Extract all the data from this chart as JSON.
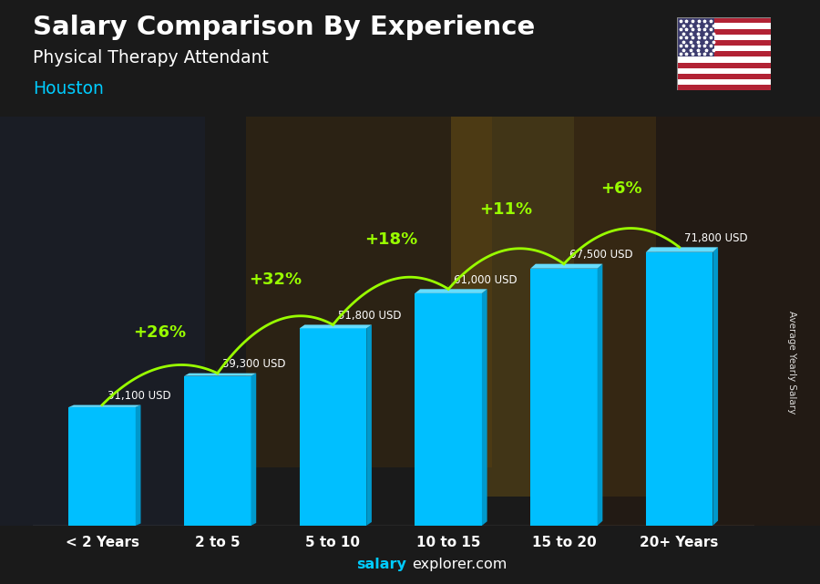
{
  "title": "Salary Comparison By Experience",
  "subtitle": "Physical Therapy Attendant",
  "city": "Houston",
  "categories": [
    "< 2 Years",
    "2 to 5",
    "5 to 10",
    "10 to 15",
    "15 to 20",
    "20+ Years"
  ],
  "values": [
    31100,
    39300,
    51800,
    61000,
    67500,
    71800
  ],
  "salary_labels": [
    "31,100 USD",
    "39,300 USD",
    "51,800 USD",
    "61,000 USD",
    "67,500 USD",
    "71,800 USD"
  ],
  "pct_changes": [
    "+26%",
    "+32%",
    "+18%",
    "+11%",
    "+6%"
  ],
  "bar_color_main": "#00BFFF",
  "bar_color_light": "#33CCFF",
  "bar_color_dark": "#0099CC",
  "bar_color_top": "#66DDFF",
  "pct_color": "#99FF00",
  "salary_label_color": "#FFFFFF",
  "title_color": "#FFFFFF",
  "subtitle_color": "#FFFFFF",
  "city_color": "#00CCFF",
  "bg_color": "#1a1a2a",
  "ylabel": "Average Yearly Salary",
  "footer_bold": "salary",
  "footer_normal": "explorer.com",
  "ylim": [
    0,
    92000
  ],
  "flag_stripes": [
    "#B22234",
    "#FFFFFF"
  ],
  "flag_canton": "#3C3B6E"
}
